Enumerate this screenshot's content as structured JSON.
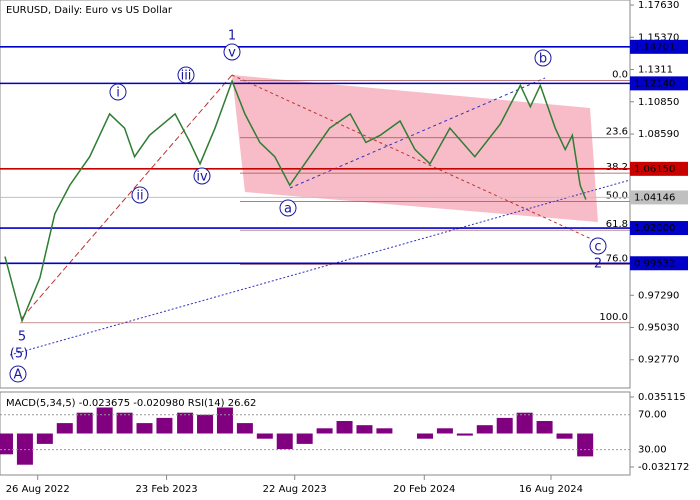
{
  "chart_data": {
    "type": "line",
    "title": "EURUSD, Daily:  Euro vs US Dollar",
    "color": "#2e7d32",
    "x": [
      -46,
      -22,
      3,
      24,
      45,
      73,
      101,
      122,
      136,
      157,
      193,
      214,
      228,
      249,
      273,
      291,
      312,
      333,
      354,
      382,
      410,
      439,
      461,
      481,
      509,
      530,
      551,
      579,
      614,
      650,
      678,
      692,
      706,
      727,
      741,
      751,
      762,
      770
    ],
    "values": [
      1.0,
      0.955,
      0.985,
      1.03,
      1.05,
      1.07,
      1.1,
      1.09,
      1.07,
      1.085,
      1.1,
      1.08,
      1.065,
      1.09,
      1.123,
      1.1,
      1.08,
      1.07,
      1.05,
      1.07,
      1.09,
      1.1,
      1.08,
      1.085,
      1.095,
      1.075,
      1.065,
      1.09,
      1.07,
      1.093,
      1.12,
      1.105,
      1.12,
      1.09,
      1.075,
      1.085,
      1.05,
      1.04
    ],
    "xlim": [
      -53,
      832
    ],
    "ylim": [
      0.9079,
      1.17983
    ],
    "xticks": [
      {
        "value": 0,
        "label": "26 Aug 2022"
      },
      {
        "value": 181,
        "label": "23 Feb 2023"
      },
      {
        "value": 361,
        "label": "22 Aug 2023"
      },
      {
        "value": 543,
        "label": "20 Feb 2024"
      },
      {
        "value": 721,
        "label": "16 Aug 2024"
      }
    ],
    "yticks": [
      {
        "value": 1.1763,
        "label": "1.17630"
      },
      {
        "value": 1.1537,
        "label": "1.15370"
      },
      1.1311,
      {
        "value": 1.1085,
        "label": "1.10850"
      },
      {
        "value": 1.0859,
        "label": "1.08590"
      },
      {
        "value": 0.9729,
        "label": "0.97290"
      },
      {
        "value": 0.9503,
        "label": "0.95030"
      },
      {
        "value": 0.9277,
        "label": "0.92770"
      }
    ],
    "levels": [
      {
        "value": 1.14701,
        "label": "1.14701",
        "color": "#0000c8"
      },
      {
        "value": 1.1214,
        "label": "1.12140",
        "color": "#0000c8"
      },
      {
        "value": 1.0615,
        "label": "1.06150",
        "color": "#c80000"
      },
      {
        "value": 1.04146,
        "label": "1.04146",
        "color": "#c0c0c0"
      },
      {
        "value": 1.02,
        "label": "1.02000",
        "color": "#0000c8"
      },
      {
        "value": 0.99532,
        "label": "0.99532",
        "color": "#0000c8"
      }
    ],
    "fibonacci": [
      {
        "value": 0.0,
        "label": "0.0",
        "price": 1.1234
      },
      {
        "value": 23.6,
        "label": "23.6",
        "price": 1.0833
      },
      {
        "value": 38.2,
        "label": "38.2",
        "price": 1.0585
      },
      {
        "value": 50.0,
        "label": "50.0",
        "price": 1.0385
      },
      {
        "value": 61.8,
        "label": "61.8",
        "price": 1.0185
      },
      {
        "value": 76.0,
        "label": "76.0",
        "price": 0.9944
      },
      {
        "value": 100.0,
        "label": "100.0",
        "price": 0.9536
      }
    ],
    "wave_labels": [
      "1",
      "v",
      "iii",
      "i",
      "ii",
      "iv",
      "a",
      "b",
      "c",
      "2",
      "5",
      "(5)",
      "A"
    ],
    "indicator": {
      "title": "MACD(5,34,5) -0.023675 -0.020980 RSI(14) 26.62",
      "color": "#800080",
      "x": [
        -46,
        -18,
        10,
        38,
        66,
        94,
        122,
        150,
        178,
        207,
        235,
        263,
        291,
        319,
        347,
        375,
        403,
        431,
        459,
        487,
        516,
        544,
        572,
        600,
        628,
        656,
        684,
        712,
        740,
        769
      ],
      "values": [
        -0.02,
        -0.03,
        -0.01,
        0.01,
        0.02,
        0.025,
        0.02,
        0.01,
        0.015,
        0.02,
        0.018,
        0.025,
        0.01,
        -0.005,
        -0.015,
        -0.01,
        0.005,
        0.012,
        0.008,
        0.005,
        0.0,
        -0.005,
        0.005,
        -0.002,
        0.008,
        0.015,
        0.02,
        0.012,
        -0.005,
        -0.022
      ],
      "ylim": [
        -0.0399,
        0.0399
      ],
      "yticks": [
        0.035115,
        -0.032172
      ],
      "y2lim": [
        1,
        96
      ],
      "y2ticks": [
        {
          "value": 70,
          "label": "70.00"
        },
        {
          "value": 30,
          "label": "30.00"
        }
      ]
    }
  }
}
